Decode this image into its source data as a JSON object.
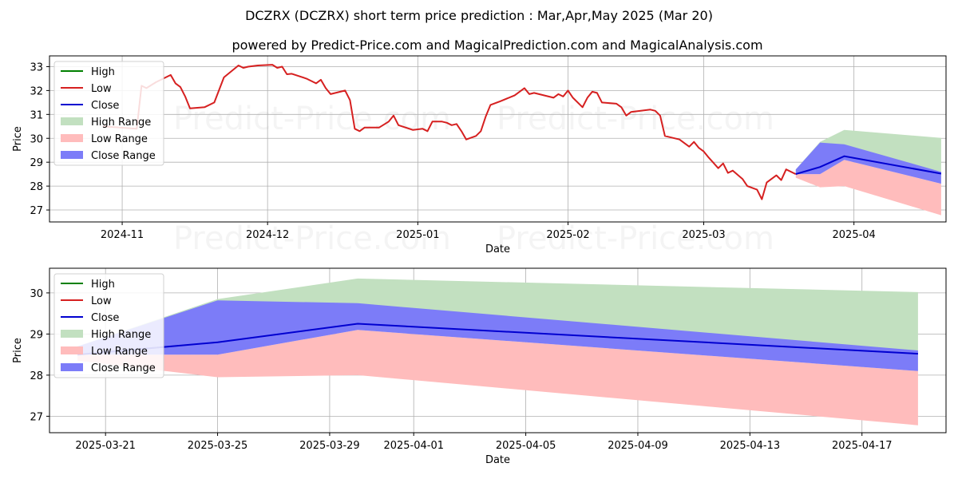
{
  "title": "DCZRX (DCZRX) short term price prediction : Mar,Apr,May 2025 (Mar 20)",
  "subtitle": "powered by Predict-Price.com and MagicalPrediction.com and MagicalAnalysis.com",
  "watermark": "Predict-Price.com",
  "colors": {
    "high": "#008000",
    "low": "#d62020",
    "close": "#0000d0",
    "high_range": "#c2e0c0",
    "low_range": "#ffbcbc",
    "close_range": "#7c7cf8",
    "grid": "#b0b0b0"
  },
  "legend": {
    "placement": "top-left",
    "entries": [
      "High",
      "Low",
      "Close",
      "High Range",
      "Low Range",
      "Close Range"
    ]
  },
  "chart_data": [
    {
      "type": "line",
      "xlabel": "Date",
      "ylabel": "Price",
      "xlim": [
        "2024-10-17",
        "2025-04-20"
      ],
      "ylim": [
        26.5,
        33.45
      ],
      "x_ticks": [
        {
          "date": "2024-11-01",
          "label": "2024-11"
        },
        {
          "date": "2024-12-01",
          "label": "2024-12"
        },
        {
          "date": "2025-01-01",
          "label": "2025-01"
        },
        {
          "date": "2025-02-01",
          "label": "2025-02"
        },
        {
          "date": "2025-03-01",
          "label": "2025-03"
        },
        {
          "date": "2025-04-01",
          "label": "2025-04"
        }
      ],
      "y_ticks": [
        27,
        28,
        29,
        30,
        31,
        32,
        33
      ],
      "grid": true,
      "history": {
        "name": "Low",
        "points": [
          [
            "2024-10-28",
            30.5
          ],
          [
            "2024-11-04",
            30.4
          ],
          [
            "2024-11-05",
            32.2
          ],
          [
            "2024-11-06",
            32.1
          ],
          [
            "2024-11-08",
            32.35
          ],
          [
            "2024-11-11",
            32.65
          ],
          [
            "2024-11-12",
            32.3
          ],
          [
            "2024-11-13",
            32.15
          ],
          [
            "2024-11-14",
            31.75
          ],
          [
            "2024-11-15",
            31.25
          ],
          [
            "2024-11-18",
            31.3
          ],
          [
            "2024-11-20",
            31.5
          ],
          [
            "2024-11-22",
            32.55
          ],
          [
            "2024-11-25",
            33.05
          ],
          [
            "2024-11-26",
            32.95
          ],
          [
            "2024-11-27",
            33.0
          ],
          [
            "2024-11-29",
            33.05
          ],
          [
            "2024-12-02",
            33.08
          ],
          [
            "2024-12-03",
            32.95
          ],
          [
            "2024-12-04",
            33.0
          ],
          [
            "2024-12-05",
            32.68
          ],
          [
            "2024-12-06",
            32.7
          ],
          [
            "2024-12-09",
            32.5
          ],
          [
            "2024-12-11",
            32.3
          ],
          [
            "2024-12-12",
            32.45
          ],
          [
            "2024-12-13",
            32.1
          ],
          [
            "2024-12-14",
            31.85
          ],
          [
            "2024-12-17",
            32.0
          ],
          [
            "2024-12-18",
            31.6
          ],
          [
            "2024-12-19",
            30.4
          ],
          [
            "2024-12-20",
            30.3
          ],
          [
            "2024-12-21",
            30.45
          ],
          [
            "2024-12-24",
            30.45
          ],
          [
            "2024-12-26",
            30.7
          ],
          [
            "2024-12-27",
            30.95
          ],
          [
            "2024-12-28",
            30.55
          ],
          [
            "2024-12-31",
            30.35
          ],
          [
            "2025-01-02",
            30.4
          ],
          [
            "2025-01-03",
            30.3
          ],
          [
            "2025-01-04",
            30.7
          ],
          [
            "2025-01-06",
            30.7
          ],
          [
            "2025-01-07",
            30.65
          ],
          [
            "2025-01-08",
            30.55
          ],
          [
            "2025-01-09",
            30.6
          ],
          [
            "2025-01-10",
            30.3
          ],
          [
            "2025-01-11",
            29.95
          ],
          [
            "2025-01-13",
            30.1
          ],
          [
            "2025-01-14",
            30.3
          ],
          [
            "2025-01-15",
            30.9
          ],
          [
            "2025-01-16",
            31.4
          ],
          [
            "2025-01-18",
            31.55
          ],
          [
            "2025-01-21",
            31.8
          ],
          [
            "2025-01-23",
            32.1
          ],
          [
            "2025-01-24",
            31.85
          ],
          [
            "2025-01-25",
            31.9
          ],
          [
            "2025-01-27",
            31.8
          ],
          [
            "2025-01-29",
            31.7
          ],
          [
            "2025-01-30",
            31.85
          ],
          [
            "2025-01-31",
            31.75
          ],
          [
            "2025-02-01",
            32.0
          ],
          [
            "2025-02-02",
            31.7
          ],
          [
            "2025-02-04",
            31.3
          ],
          [
            "2025-02-05",
            31.7
          ],
          [
            "2025-02-06",
            31.95
          ],
          [
            "2025-02-07",
            31.9
          ],
          [
            "2025-02-08",
            31.5
          ],
          [
            "2025-02-11",
            31.45
          ],
          [
            "2025-02-12",
            31.3
          ],
          [
            "2025-02-13",
            30.95
          ],
          [
            "2025-02-14",
            31.1
          ],
          [
            "2025-02-18",
            31.2
          ],
          [
            "2025-02-19",
            31.15
          ],
          [
            "2025-02-20",
            30.95
          ],
          [
            "2025-02-21",
            30.1
          ],
          [
            "2025-02-24",
            29.95
          ],
          [
            "2025-02-26",
            29.65
          ],
          [
            "2025-02-27",
            29.85
          ],
          [
            "2025-02-28",
            29.6
          ],
          [
            "2025-03-01",
            29.45
          ],
          [
            "2025-03-02",
            29.2
          ],
          [
            "2025-03-04",
            28.75
          ],
          [
            "2025-03-05",
            28.95
          ],
          [
            "2025-03-06",
            28.55
          ],
          [
            "2025-03-07",
            28.65
          ],
          [
            "2025-03-09",
            28.3
          ],
          [
            "2025-03-10",
            28.0
          ],
          [
            "2025-03-12",
            27.85
          ],
          [
            "2025-03-13",
            27.45
          ],
          [
            "2025-03-14",
            28.15
          ],
          [
            "2025-03-16",
            28.45
          ],
          [
            "2025-03-17",
            28.25
          ],
          [
            "2025-03-18",
            28.7
          ],
          [
            "2025-03-20",
            28.5
          ]
        ]
      },
      "forecast_dates": [
        "2025-03-20",
        "2025-03-25",
        "2025-03-30",
        "2025-04-19"
      ],
      "series": [
        {
          "name": "Close",
          "values": [
            28.5,
            28.8,
            29.25,
            28.52
          ]
        },
        {
          "name": "High Range",
          "upper": [
            28.7,
            29.85,
            30.35,
            30.02
          ],
          "lower": [
            28.5,
            28.8,
            29.25,
            28.55
          ]
        },
        {
          "name": "Low Range",
          "upper": [
            28.5,
            28.5,
            29.1,
            28.1
          ],
          "lower": [
            28.35,
            27.95,
            28.0,
            26.78
          ]
        },
        {
          "name": "Close Range",
          "upper": [
            28.7,
            29.82,
            29.75,
            28.6
          ],
          "lower": [
            28.5,
            28.5,
            29.1,
            28.1
          ]
        }
      ]
    },
    {
      "type": "line",
      "xlabel": "Date",
      "ylabel": "Price",
      "xlim": [
        "2025-03-19",
        "2025-04-20"
      ],
      "ylim": [
        26.6,
        30.6
      ],
      "x_ticks": [
        {
          "date": "2025-03-21",
          "label": "2025-03-21"
        },
        {
          "date": "2025-03-25",
          "label": "2025-03-25"
        },
        {
          "date": "2025-03-29",
          "label": "2025-03-29"
        },
        {
          "date": "2025-04-01",
          "label": "2025-04-01"
        },
        {
          "date": "2025-04-05",
          "label": "2025-04-05"
        },
        {
          "date": "2025-04-09",
          "label": "2025-04-09"
        },
        {
          "date": "2025-04-13",
          "label": "2025-04-13"
        },
        {
          "date": "2025-04-17",
          "label": "2025-04-17"
        }
      ],
      "y_ticks": [
        27,
        28,
        29,
        30
      ],
      "grid": true,
      "forecast_dates": [
        "2025-03-20",
        "2025-03-25",
        "2025-03-30",
        "2025-04-19"
      ],
      "series": [
        {
          "name": "Close",
          "values": [
            28.5,
            28.8,
            29.25,
            28.52
          ]
        },
        {
          "name": "High Range",
          "upper": [
            28.7,
            29.85,
            30.35,
            30.02
          ],
          "lower": [
            28.5,
            28.8,
            29.25,
            28.55
          ]
        },
        {
          "name": "Low Range",
          "upper": [
            28.5,
            28.5,
            29.1,
            28.1
          ],
          "lower": [
            28.35,
            27.95,
            28.0,
            26.78
          ]
        },
        {
          "name": "Close Range",
          "upper": [
            28.7,
            29.82,
            29.75,
            28.6
          ],
          "lower": [
            28.5,
            28.5,
            29.1,
            28.1
          ]
        }
      ]
    }
  ]
}
